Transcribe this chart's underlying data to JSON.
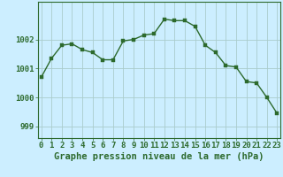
{
  "hours": [
    0,
    1,
    2,
    3,
    4,
    5,
    6,
    7,
    8,
    9,
    10,
    11,
    12,
    13,
    14,
    15,
    16,
    17,
    18,
    19,
    20,
    21,
    22,
    23
  ],
  "pressure": [
    1000.7,
    1001.35,
    1001.8,
    1001.85,
    1001.65,
    1001.55,
    1001.3,
    1001.3,
    1001.95,
    1002.0,
    1002.15,
    1002.2,
    1002.7,
    1002.65,
    1002.65,
    1002.45,
    1001.8,
    1001.55,
    1001.1,
    1001.05,
    1000.55,
    1000.5,
    1000.0,
    999.45
  ],
  "line_color": "#2d6a2d",
  "marker": "s",
  "marker_size": 2.5,
  "bg_color": "#cceeff",
  "grid_color": "#aacccc",
  "xlabel": "Graphe pression niveau de la mer (hPa)",
  "yticks": [
    999,
    1000,
    1001,
    1002
  ],
  "ylim": [
    998.6,
    1003.3
  ],
  "xlim": [
    -0.3,
    23.3
  ],
  "xtick_labels": [
    "0",
    "1",
    "2",
    "3",
    "4",
    "5",
    "6",
    "7",
    "8",
    "9",
    "10",
    "11",
    "12",
    "13",
    "14",
    "15",
    "16",
    "17",
    "18",
    "19",
    "20",
    "21",
    "22",
    "23"
  ],
  "xlabel_fontsize": 7.5,
  "tick_fontsize": 6.5,
  "label_color": "#2d6a2d"
}
